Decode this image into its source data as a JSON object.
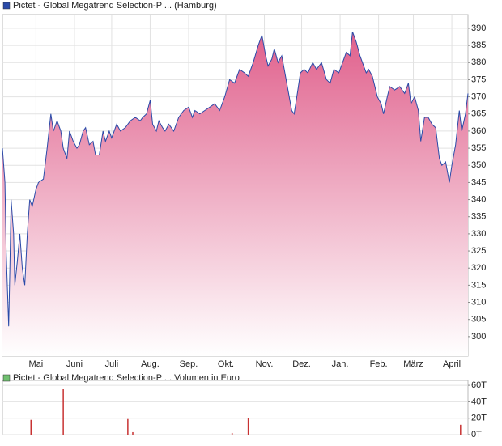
{
  "chart_data": [
    {
      "type": "area",
      "xlim": [
        0,
        375
      ],
      "xticks": [
        {
          "value": 27,
          "label": "Mai"
        },
        {
          "value": 58,
          "label": "Juni"
        },
        {
          "value": 88,
          "label": "Juli"
        },
        {
          "value": 119,
          "label": "Aug."
        },
        {
          "value": 150,
          "label": "Sep."
        },
        {
          "value": 180,
          "label": "Okt."
        },
        {
          "value": 211,
          "label": "Nov."
        },
        {
          "value": 241,
          "label": "Dez."
        },
        {
          "value": 272,
          "label": "Jan."
        },
        {
          "value": 303,
          "label": "Feb."
        },
        {
          "value": 331,
          "label": "März"
        },
        {
          "value": 362,
          "label": "April"
        }
      ],
      "ylim": [
        294.3,
        394
      ],
      "yticks": [
        300,
        305,
        310,
        315,
        320,
        325,
        330,
        335,
        340,
        345,
        350,
        355,
        360,
        365,
        370,
        375,
        380,
        385,
        390
      ],
      "grid": true,
      "x": [
        0,
        2,
        3,
        5,
        6,
        7,
        9,
        10,
        12,
        14,
        16,
        18,
        20,
        22,
        24,
        27,
        29,
        33,
        36,
        39,
        41,
        44,
        47,
        49,
        52,
        54,
        57,
        60,
        62,
        65,
        67,
        70,
        73,
        75,
        78,
        81,
        83,
        86,
        88,
        92,
        95,
        99,
        103,
        107,
        111,
        113,
        116,
        119,
        121,
        124,
        126,
        129,
        131,
        134,
        138,
        142,
        146,
        150,
        153,
        155,
        159,
        163,
        167,
        171,
        175,
        179,
        183,
        187,
        191,
        195,
        198,
        202,
        206,
        209,
        212,
        214,
        217,
        219,
        222,
        225,
        227,
        230,
        233,
        235,
        238,
        240,
        243,
        246,
        250,
        253,
        257,
        261,
        264,
        267,
        271,
        274,
        277,
        280,
        282,
        285,
        288,
        290,
        293,
        295,
        298,
        302,
        305,
        307,
        310,
        312,
        316,
        320,
        324,
        327,
        329,
        332,
        335,
        337,
        340,
        343,
        346,
        349,
        352,
        354,
        357,
        360,
        362,
        365,
        368,
        370,
        373,
        375
      ],
      "series": [
        {
          "name": "Pictet - Global Megatrend Selection-P ... (Hamburg)",
          "color": "#2a4aa8",
          "values": [
            355,
            345,
            325,
            303,
            320,
            340,
            330,
            315,
            322,
            330,
            320,
            315,
            330,
            340,
            338,
            343,
            345,
            346,
            355,
            365,
            360,
            363,
            360,
            355,
            352,
            360,
            357,
            355,
            356,
            360,
            361,
            356,
            357,
            353,
            353,
            360,
            357,
            360,
            358,
            362,
            360,
            361,
            363,
            364,
            363,
            364,
            365,
            369,
            362,
            360,
            363,
            361,
            360,
            362,
            360,
            364,
            366,
            367,
            364,
            366,
            365,
            366,
            367,
            368,
            366,
            370,
            375,
            374,
            378,
            377,
            376,
            380,
            385,
            388,
            382,
            379,
            381,
            384,
            380,
            382,
            378,
            372,
            366,
            365,
            372,
            377,
            378,
            377,
            380,
            378,
            380,
            375,
            374,
            378,
            377,
            380,
            383,
            382,
            389,
            386,
            382,
            380,
            377,
            378,
            376,
            370,
            368,
            365,
            370,
            373,
            372,
            373,
            371,
            374,
            368,
            370,
            366,
            357,
            364,
            364,
            362,
            361,
            352,
            350,
            351,
            345,
            350,
            356,
            366,
            360,
            365,
            371
          ]
        }
      ]
    },
    {
      "type": "bar",
      "xlim": [
        0,
        375
      ],
      "ylim": [
        0,
        66
      ],
      "yticks": [
        {
          "value": 0,
          "label": "0T"
        },
        {
          "value": 20,
          "label": "20T"
        },
        {
          "value": 40,
          "label": "40T"
        },
        {
          "value": 60,
          "label": "60T"
        }
      ],
      "grid": true,
      "x": [
        23,
        49,
        101,
        105,
        185,
        198,
        369
      ],
      "series": [
        {
          "name": "Pictet - Global Megatrend Selection-P ... Volumen in Euro",
          "color": "#c83232",
          "legend_color": "#70c070",
          "values": [
            18,
            56,
            19,
            3,
            2,
            20,
            12
          ]
        }
      ]
    }
  ]
}
